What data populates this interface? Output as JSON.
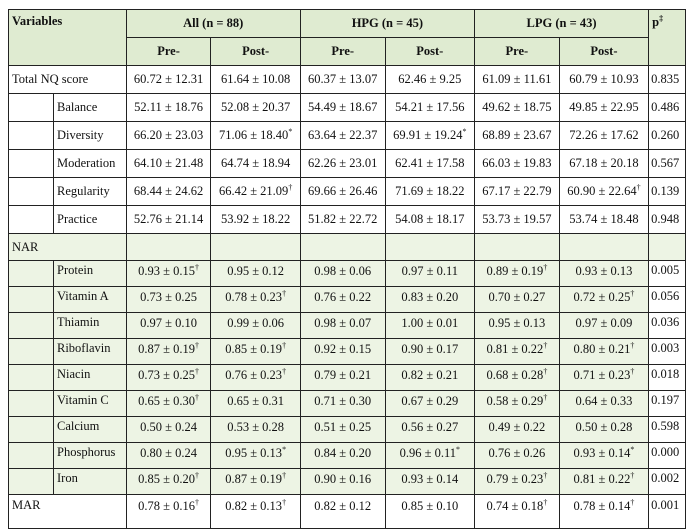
{
  "header": {
    "variables": "Variables",
    "groups": [
      "All (n = 88)",
      "HPG (n = 45)",
      "LPG (n = 43)"
    ],
    "p_label": "p",
    "p_sup": "‡",
    "sub": [
      "Pre-",
      "Post-",
      "Pre-",
      "Post-",
      "Pre-",
      "Post-"
    ]
  },
  "total": {
    "label": "Total NQ score",
    "cells": [
      {
        "v": "60.72 ± 12.31",
        "s": ""
      },
      {
        "v": "61.64 ± 10.08",
        "s": ""
      },
      {
        "v": "60.37 ± 13.07",
        "s": ""
      },
      {
        "v": "62.46 ± 9.25",
        "s": ""
      },
      {
        "v": "61.09 ± 11.61",
        "s": ""
      },
      {
        "v": "60.79 ± 10.93",
        "s": ""
      }
    ],
    "p": "0.835"
  },
  "nq_rows": [
    {
      "label": "Balance",
      "cells": [
        {
          "v": "52.11 ± 18.76",
          "s": ""
        },
        {
          "v": "52.08 ± 20.37",
          "s": ""
        },
        {
          "v": "54.49 ± 18.67",
          "s": ""
        },
        {
          "v": "54.21 ± 17.56",
          "s": ""
        },
        {
          "v": "49.62 ± 18.75",
          "s": ""
        },
        {
          "v": "49.85 ± 22.95",
          "s": ""
        }
      ],
      "p": "0.486"
    },
    {
      "label": "Diversity",
      "cells": [
        {
          "v": "66.20 ± 23.03",
          "s": ""
        },
        {
          "v": "71.06 ± 18.40",
          "s": "*"
        },
        {
          "v": "63.64 ± 22.37",
          "s": ""
        },
        {
          "v": "69.91 ± 19.24",
          "s": "*"
        },
        {
          "v": "68.89 ± 23.67",
          "s": ""
        },
        {
          "v": "72.26 ± 17.62",
          "s": ""
        }
      ],
      "p": "0.260"
    },
    {
      "label": "Moderation",
      "cells": [
        {
          "v": "64.10 ± 21.48",
          "s": ""
        },
        {
          "v": "64.74 ± 18.94",
          "s": ""
        },
        {
          "v": "62.26 ± 23.01",
          "s": ""
        },
        {
          "v": "62.41 ± 17.58",
          "s": ""
        },
        {
          "v": "66.03 ± 19.83",
          "s": ""
        },
        {
          "v": "67.18 ± 20.18",
          "s": ""
        }
      ],
      "p": "0.567"
    },
    {
      "label": "Regularity",
      "cells": [
        {
          "v": "68.44 ± 24.62",
          "s": ""
        },
        {
          "v": "66.42 ± 21.09",
          "s": "†"
        },
        {
          "v": "69.66 ± 26.46",
          "s": ""
        },
        {
          "v": "71.69 ± 18.22",
          "s": ""
        },
        {
          "v": "67.17 ± 22.79",
          "s": ""
        },
        {
          "v": "60.90 ± 22.64",
          "s": "†"
        }
      ],
      "p": "0.139"
    },
    {
      "label": "Practice",
      "cells": [
        {
          "v": "52.76 ± 21.14",
          "s": ""
        },
        {
          "v": "53.92 ± 18.22",
          "s": ""
        },
        {
          "v": "51.82 ± 22.72",
          "s": ""
        },
        {
          "v": "54.08 ± 18.17",
          "s": ""
        },
        {
          "v": "53.73 ± 19.57",
          "s": ""
        },
        {
          "v": "53.74 ± 18.48",
          "s": ""
        }
      ],
      "p": "0.948"
    }
  ],
  "nar_label": "NAR",
  "nar_rows": [
    {
      "label": "Protein",
      "cells": [
        {
          "v": "0.93 ± 0.15",
          "s": "†"
        },
        {
          "v": "0.95 ± 0.12",
          "s": ""
        },
        {
          "v": "0.98 ± 0.06",
          "s": ""
        },
        {
          "v": "0.97 ± 0.11",
          "s": ""
        },
        {
          "v": "0.89 ± 0.19",
          "s": "†"
        },
        {
          "v": "0.93 ± 0.13",
          "s": ""
        }
      ],
      "p": "0.005"
    },
    {
      "label": "Vitamin A",
      "cells": [
        {
          "v": "0.73 ± 0.25",
          "s": ""
        },
        {
          "v": "0.78 ± 0.23",
          "s": "†"
        },
        {
          "v": "0.76 ± 0.22",
          "s": ""
        },
        {
          "v": "0.83 ± 0.20",
          "s": ""
        },
        {
          "v": "0.70 ± 0.27",
          "s": ""
        },
        {
          "v": "0.72 ± 0.25",
          "s": "†"
        }
      ],
      "p": "0.056"
    },
    {
      "label": "Thiamin",
      "cells": [
        {
          "v": "0.97 ± 0.10",
          "s": ""
        },
        {
          "v": "0.99 ± 0.06",
          "s": ""
        },
        {
          "v": "0.98 ± 0.07",
          "s": ""
        },
        {
          "v": "1.00 ± 0.01",
          "s": ""
        },
        {
          "v": "0.95 ± 0.13",
          "s": ""
        },
        {
          "v": "0.97 ± 0.09",
          "s": ""
        }
      ],
      "p": "0.036"
    },
    {
      "label": "Riboflavin",
      "cells": [
        {
          "v": "0.87 ± 0.19",
          "s": "†"
        },
        {
          "v": "0.85 ± 0.19",
          "s": "†"
        },
        {
          "v": "0.92 ± 0.15",
          "s": ""
        },
        {
          "v": "0.90 ± 0.17",
          "s": ""
        },
        {
          "v": "0.81 ± 0.22",
          "s": "†"
        },
        {
          "v": "0.80 ± 0.21",
          "s": "†"
        }
      ],
      "p": "0.003"
    },
    {
      "label": "Niacin",
      "cells": [
        {
          "v": "0.73 ± 0.25",
          "s": "†"
        },
        {
          "v": "0.76 ± 0.23",
          "s": "†"
        },
        {
          "v": "0.79 ± 0.21",
          "s": ""
        },
        {
          "v": "0.82 ± 0.21",
          "s": ""
        },
        {
          "v": "0.68 ± 0.28",
          "s": "†"
        },
        {
          "v": "0.71 ± 0.23",
          "s": "†"
        }
      ],
      "p": "0.018"
    },
    {
      "label": "Vitamin C",
      "cells": [
        {
          "v": "0.65 ± 0.30",
          "s": "†"
        },
        {
          "v": "0.65 ± 0.31",
          "s": ""
        },
        {
          "v": "0.71 ± 0.30",
          "s": ""
        },
        {
          "v": "0.67 ± 0.29",
          "s": ""
        },
        {
          "v": "0.58 ± 0.29",
          "s": "†"
        },
        {
          "v": "0.64 ± 0.33",
          "s": ""
        }
      ],
      "p": "0.197"
    },
    {
      "label": "Calcium",
      "cells": [
        {
          "v": "0.50 ± 0.24",
          "s": ""
        },
        {
          "v": "0.53 ± 0.28",
          "s": ""
        },
        {
          "v": "0.51 ± 0.25",
          "s": ""
        },
        {
          "v": "0.56 ± 0.27",
          "s": ""
        },
        {
          "v": "0.49 ± 0.22",
          "s": ""
        },
        {
          "v": "0.50 ± 0.28",
          "s": ""
        }
      ],
      "p": "0.598"
    },
    {
      "label": "Phosphorus",
      "cells": [
        {
          "v": "0.80 ± 0.24",
          "s": ""
        },
        {
          "v": "0.95 ± 0.13",
          "s": "*"
        },
        {
          "v": "0.84 ± 0.20",
          "s": ""
        },
        {
          "v": "0.96 ± 0.11",
          "s": "*"
        },
        {
          "v": "0.76 ± 0.26",
          "s": ""
        },
        {
          "v": "0.93 ± 0.14",
          "s": "*"
        }
      ],
      "p": "0.000"
    },
    {
      "label": "Iron",
      "cells": [
        {
          "v": "0.85 ± 0.20",
          "s": "†"
        },
        {
          "v": "0.87 ± 0.19",
          "s": "†"
        },
        {
          "v": "0.90 ± 0.16",
          "s": ""
        },
        {
          "v": "0.93 ± 0.14",
          "s": ""
        },
        {
          "v": "0.79 ± 0.23",
          "s": "†"
        },
        {
          "v": "0.81 ± 0.22",
          "s": "†"
        }
      ],
      "p": "0.002"
    }
  ],
  "mar": {
    "label": "MAR",
    "cells": [
      {
        "v": "0.78 ± 0.16",
        "s": "†"
      },
      {
        "v": "0.82 ± 0.13",
        "s": "†"
      },
      {
        "v": "0.82 ± 0.12",
        "s": ""
      },
      {
        "v": "0.85 ± 0.10",
        "s": ""
      },
      {
        "v": "0.74 ± 0.18",
        "s": "†"
      },
      {
        "v": "0.78 ± 0.14",
        "s": "†"
      }
    ],
    "p": "0.001"
  },
  "colors": {
    "header_bg": "#dfebd1",
    "nar_bg": "#edf4e4"
  }
}
